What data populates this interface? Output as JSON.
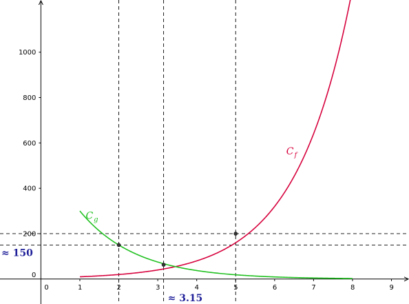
{
  "chart_data": {
    "type": "line",
    "xlim": [
      -1.05,
      9.45
    ],
    "ylim": [
      -110,
      1230
    ],
    "x_ticks": [
      "0",
      "1",
      "2",
      "3",
      "4",
      "5",
      "6",
      "7",
      "8",
      "9"
    ],
    "y_ticks": [
      "0",
      "200",
      "400",
      "600",
      "800",
      "1000"
    ],
    "x_tick_values": [
      0,
      1,
      2,
      3,
      4,
      5,
      6,
      7,
      8,
      9
    ],
    "y_tick_values": [
      0,
      200,
      400,
      600,
      800,
      1000
    ],
    "series": [
      {
        "name": "C_f",
        "label_main": "C",
        "label_sub": "f",
        "color": "#d6003c",
        "domain": [
          1,
          8
        ],
        "x": [
          1,
          1.5,
          2,
          2.5,
          3,
          3.15,
          3.5,
          4,
          4.5,
          5,
          5.5,
          6,
          6.5,
          7,
          7.5,
          8
        ],
        "y": [
          20,
          24,
          31,
          40,
          53,
          58,
          71,
          101,
          143,
          200,
          283,
          390,
          543,
          748,
          1000,
          1240
        ]
      },
      {
        "name": "C_g",
        "label_main": "C",
        "label_sub": "g",
        "color": "#1fc01f",
        "domain": [
          1,
          8
        ],
        "x": [
          1,
          1.5,
          2,
          2.5,
          3,
          3.15,
          3.5,
          4,
          4.5,
          5,
          5.5,
          6,
          6.5,
          7,
          7.5,
          8
        ],
        "y": [
          300,
          212,
          150,
          106,
          75,
          63,
          44,
          28,
          18,
          12,
          8,
          5,
          3,
          2,
          1.2,
          0.8
        ]
      }
    ],
    "points": [
      {
        "x": 2,
        "y": 150
      },
      {
        "x": 3.15,
        "y": 63
      },
      {
        "x": 5,
        "y": 200
      }
    ],
    "guides": {
      "vertical": [
        2,
        3.15,
        5
      ],
      "horizontal": [
        150,
        200
      ]
    },
    "annotations": [
      {
        "text": "≈ 150",
        "anchor": "y-axis",
        "value": 150
      },
      {
        "text": "≈ 3.15",
        "anchor": "x-axis",
        "value": 3.15
      }
    ],
    "grid": false
  }
}
